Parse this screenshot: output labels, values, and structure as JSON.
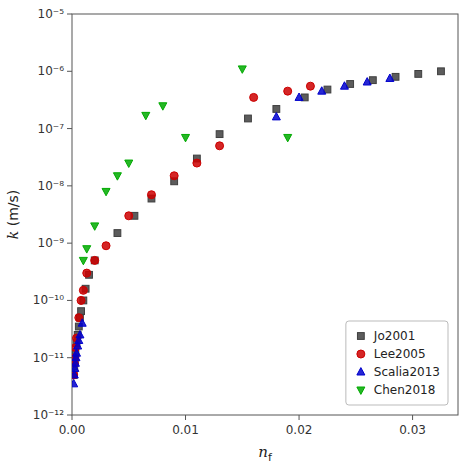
{
  "chart_data": {
    "type": "scatter",
    "title": "",
    "xlabel": "nf",
    "ylabel": "k (m/s)",
    "log": "y",
    "grid": false,
    "legend": "lower right",
    "xlim": [
      0.0,
      0.034
    ],
    "ylim": [
      1e-12,
      1e-05
    ],
    "xticks": [
      {
        "value": 0,
        "label": "0.00"
      },
      0.01,
      0.02,
      0.03
    ],
    "yticks": [
      {
        "value": 1e-12,
        "label": "10⁻¹²"
      },
      {
        "value": 1e-11,
        "label": "10⁻¹¹"
      },
      {
        "value": 1e-10,
        "label": "10⁻¹⁰"
      },
      {
        "value": 1e-09,
        "label": "10⁻⁹"
      },
      {
        "value": 1e-08,
        "label": "10⁻⁸"
      },
      {
        "value": 1e-07,
        "label": "10⁻⁷"
      },
      {
        "value": 1e-06,
        "label": "10⁻⁶"
      },
      {
        "value": 1e-05,
        "label": "10⁻⁵"
      }
    ],
    "series": [
      {
        "name": "Jo2001",
        "color": "#3f3f3f",
        "marker": "square",
        "x": [
          0.00015,
          0.0002,
          0.00025,
          0.0003,
          0.0004,
          0.0005,
          0.0006,
          0.0007,
          0.0008,
          0.001,
          0.0012,
          0.0015,
          0.002,
          0.004,
          0.0055,
          0.007,
          0.009,
          0.011,
          0.013,
          0.0155,
          0.018,
          0.0205,
          0.0225,
          0.0245,
          0.0265,
          0.0285,
          0.0305,
          0.0325
        ],
        "values": [
          5e-12,
          7e-12,
          9e-12,
          1.2e-11,
          1.8e-11,
          2.5e-11,
          3.5e-11,
          5e-11,
          6.5e-11,
          1e-10,
          1.6e-10,
          2.8e-10,
          5e-10,
          1.5e-09,
          3e-09,
          6e-09,
          1.2e-08,
          3e-08,
          8e-08,
          1.5e-07,
          2.2e-07,
          3.5e-07,
          4.8e-07,
          6e-07,
          7e-07,
          8e-07,
          9e-07,
          1e-06
        ]
      },
      {
        "name": "Lee2005",
        "color": "#cc0000",
        "marker": "circle",
        "x": [
          0.00015,
          0.0002,
          0.00025,
          0.0003,
          0.0004,
          0.0006,
          0.0008,
          0.001,
          0.0013,
          0.002,
          0.003,
          0.005,
          0.007,
          0.009,
          0.011,
          0.013,
          0.016,
          0.019,
          0.021
        ],
        "values": [
          5e-12,
          8e-12,
          1e-11,
          1.5e-11,
          2.2e-11,
          5e-11,
          1e-10,
          1.5e-10,
          3e-10,
          5e-10,
          9e-10,
          3e-09,
          7e-09,
          1.5e-08,
          2.5e-08,
          5e-08,
          3.5e-07,
          4.5e-07,
          5.5e-07
        ]
      },
      {
        "name": "Scalia2013",
        "color": "#0000cc",
        "marker": "triangle-up",
        "x": [
          0.00015,
          0.0002,
          0.00025,
          0.0003,
          0.00035,
          0.0004,
          0.0005,
          0.0006,
          0.0007,
          0.0009,
          0.018,
          0.02,
          0.022,
          0.024,
          0.026,
          0.028
        ],
        "values": [
          3.5e-12,
          5e-12,
          6.5e-12,
          8e-12,
          1e-11,
          1.2e-11,
          1.6e-11,
          2e-11,
          2.5e-11,
          4e-11,
          1.6e-07,
          3.5e-07,
          4.5e-07,
          5.5e-07,
          6.5e-07,
          7.5e-07
        ]
      },
      {
        "name": "Chen2018",
        "color": "#00aa00",
        "marker": "triangle-down",
        "x": [
          0.001,
          0.0013,
          0.002,
          0.003,
          0.004,
          0.005,
          0.0065,
          0.008,
          0.01,
          0.015,
          0.019
        ],
        "values": [
          5e-10,
          8e-10,
          2e-09,
          8e-09,
          1.5e-08,
          2.5e-08,
          1.7e-07,
          2.5e-07,
          7e-08,
          1.1e-06,
          7e-08
        ]
      }
    ]
  }
}
